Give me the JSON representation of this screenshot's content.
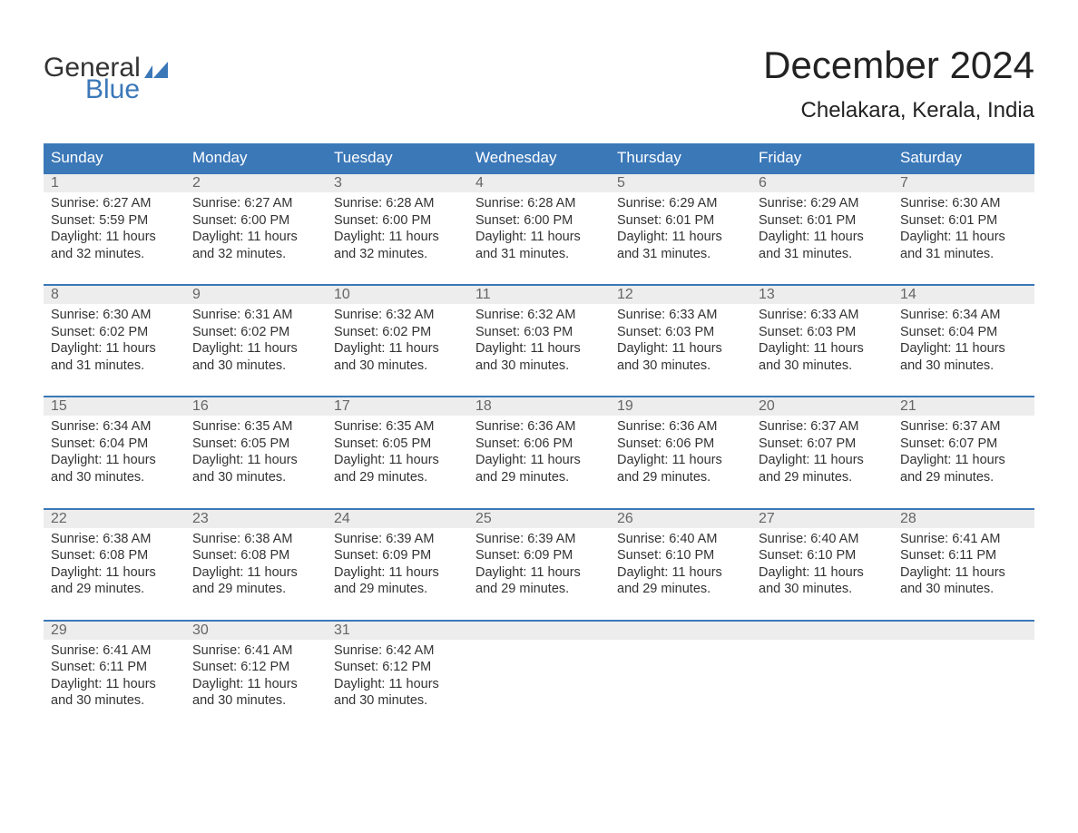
{
  "logo": {
    "word1": "General",
    "word2": "Blue",
    "mark_color": "#3b78b8"
  },
  "title": "December 2024",
  "location": "Chelakara, Kerala, India",
  "colors": {
    "header_bg": "#3b78b8",
    "header_text": "#ffffff",
    "daynum_bg": "#ededed",
    "daynum_text": "#666666",
    "body_text": "#333333",
    "week_border": "#3b78b8",
    "page_bg": "#ffffff"
  },
  "typography": {
    "title_fontsize": 42,
    "location_fontsize": 24,
    "weekday_fontsize": 17,
    "daynum_fontsize": 16,
    "body_fontsize": 14.5,
    "font_family": "Arial"
  },
  "layout": {
    "columns": 7,
    "rows": 5,
    "start_weekday": "Sunday"
  },
  "weekdays": [
    "Sunday",
    "Monday",
    "Tuesday",
    "Wednesday",
    "Thursday",
    "Friday",
    "Saturday"
  ],
  "weeks": [
    [
      {
        "day": "1",
        "sunrise": "Sunrise: 6:27 AM",
        "sunset": "Sunset: 5:59 PM",
        "daylight1": "Daylight: 11 hours",
        "daylight2": "and 32 minutes."
      },
      {
        "day": "2",
        "sunrise": "Sunrise: 6:27 AM",
        "sunset": "Sunset: 6:00 PM",
        "daylight1": "Daylight: 11 hours",
        "daylight2": "and 32 minutes."
      },
      {
        "day": "3",
        "sunrise": "Sunrise: 6:28 AM",
        "sunset": "Sunset: 6:00 PM",
        "daylight1": "Daylight: 11 hours",
        "daylight2": "and 32 minutes."
      },
      {
        "day": "4",
        "sunrise": "Sunrise: 6:28 AM",
        "sunset": "Sunset: 6:00 PM",
        "daylight1": "Daylight: 11 hours",
        "daylight2": "and 31 minutes."
      },
      {
        "day": "5",
        "sunrise": "Sunrise: 6:29 AM",
        "sunset": "Sunset: 6:01 PM",
        "daylight1": "Daylight: 11 hours",
        "daylight2": "and 31 minutes."
      },
      {
        "day": "6",
        "sunrise": "Sunrise: 6:29 AM",
        "sunset": "Sunset: 6:01 PM",
        "daylight1": "Daylight: 11 hours",
        "daylight2": "and 31 minutes."
      },
      {
        "day": "7",
        "sunrise": "Sunrise: 6:30 AM",
        "sunset": "Sunset: 6:01 PM",
        "daylight1": "Daylight: 11 hours",
        "daylight2": "and 31 minutes."
      }
    ],
    [
      {
        "day": "8",
        "sunrise": "Sunrise: 6:30 AM",
        "sunset": "Sunset: 6:02 PM",
        "daylight1": "Daylight: 11 hours",
        "daylight2": "and 31 minutes."
      },
      {
        "day": "9",
        "sunrise": "Sunrise: 6:31 AM",
        "sunset": "Sunset: 6:02 PM",
        "daylight1": "Daylight: 11 hours",
        "daylight2": "and 30 minutes."
      },
      {
        "day": "10",
        "sunrise": "Sunrise: 6:32 AM",
        "sunset": "Sunset: 6:02 PM",
        "daylight1": "Daylight: 11 hours",
        "daylight2": "and 30 minutes."
      },
      {
        "day": "11",
        "sunrise": "Sunrise: 6:32 AM",
        "sunset": "Sunset: 6:03 PM",
        "daylight1": "Daylight: 11 hours",
        "daylight2": "and 30 minutes."
      },
      {
        "day": "12",
        "sunrise": "Sunrise: 6:33 AM",
        "sunset": "Sunset: 6:03 PM",
        "daylight1": "Daylight: 11 hours",
        "daylight2": "and 30 minutes."
      },
      {
        "day": "13",
        "sunrise": "Sunrise: 6:33 AM",
        "sunset": "Sunset: 6:03 PM",
        "daylight1": "Daylight: 11 hours",
        "daylight2": "and 30 minutes."
      },
      {
        "day": "14",
        "sunrise": "Sunrise: 6:34 AM",
        "sunset": "Sunset: 6:04 PM",
        "daylight1": "Daylight: 11 hours",
        "daylight2": "and 30 minutes."
      }
    ],
    [
      {
        "day": "15",
        "sunrise": "Sunrise: 6:34 AM",
        "sunset": "Sunset: 6:04 PM",
        "daylight1": "Daylight: 11 hours",
        "daylight2": "and 30 minutes."
      },
      {
        "day": "16",
        "sunrise": "Sunrise: 6:35 AM",
        "sunset": "Sunset: 6:05 PM",
        "daylight1": "Daylight: 11 hours",
        "daylight2": "and 30 minutes."
      },
      {
        "day": "17",
        "sunrise": "Sunrise: 6:35 AM",
        "sunset": "Sunset: 6:05 PM",
        "daylight1": "Daylight: 11 hours",
        "daylight2": "and 29 minutes."
      },
      {
        "day": "18",
        "sunrise": "Sunrise: 6:36 AM",
        "sunset": "Sunset: 6:06 PM",
        "daylight1": "Daylight: 11 hours",
        "daylight2": "and 29 minutes."
      },
      {
        "day": "19",
        "sunrise": "Sunrise: 6:36 AM",
        "sunset": "Sunset: 6:06 PM",
        "daylight1": "Daylight: 11 hours",
        "daylight2": "and 29 minutes."
      },
      {
        "day": "20",
        "sunrise": "Sunrise: 6:37 AM",
        "sunset": "Sunset: 6:07 PM",
        "daylight1": "Daylight: 11 hours",
        "daylight2": "and 29 minutes."
      },
      {
        "day": "21",
        "sunrise": "Sunrise: 6:37 AM",
        "sunset": "Sunset: 6:07 PM",
        "daylight1": "Daylight: 11 hours",
        "daylight2": "and 29 minutes."
      }
    ],
    [
      {
        "day": "22",
        "sunrise": "Sunrise: 6:38 AM",
        "sunset": "Sunset: 6:08 PM",
        "daylight1": "Daylight: 11 hours",
        "daylight2": "and 29 minutes."
      },
      {
        "day": "23",
        "sunrise": "Sunrise: 6:38 AM",
        "sunset": "Sunset: 6:08 PM",
        "daylight1": "Daylight: 11 hours",
        "daylight2": "and 29 minutes."
      },
      {
        "day": "24",
        "sunrise": "Sunrise: 6:39 AM",
        "sunset": "Sunset: 6:09 PM",
        "daylight1": "Daylight: 11 hours",
        "daylight2": "and 29 minutes."
      },
      {
        "day": "25",
        "sunrise": "Sunrise: 6:39 AM",
        "sunset": "Sunset: 6:09 PM",
        "daylight1": "Daylight: 11 hours",
        "daylight2": "and 29 minutes."
      },
      {
        "day": "26",
        "sunrise": "Sunrise: 6:40 AM",
        "sunset": "Sunset: 6:10 PM",
        "daylight1": "Daylight: 11 hours",
        "daylight2": "and 29 minutes."
      },
      {
        "day": "27",
        "sunrise": "Sunrise: 6:40 AM",
        "sunset": "Sunset: 6:10 PM",
        "daylight1": "Daylight: 11 hours",
        "daylight2": "and 30 minutes."
      },
      {
        "day": "28",
        "sunrise": "Sunrise: 6:41 AM",
        "sunset": "Sunset: 6:11 PM",
        "daylight1": "Daylight: 11 hours",
        "daylight2": "and 30 minutes."
      }
    ],
    [
      {
        "day": "29",
        "sunrise": "Sunrise: 6:41 AM",
        "sunset": "Sunset: 6:11 PM",
        "daylight1": "Daylight: 11 hours",
        "daylight2": "and 30 minutes."
      },
      {
        "day": "30",
        "sunrise": "Sunrise: 6:41 AM",
        "sunset": "Sunset: 6:12 PM",
        "daylight1": "Daylight: 11 hours",
        "daylight2": "and 30 minutes."
      },
      {
        "day": "31",
        "sunrise": "Sunrise: 6:42 AM",
        "sunset": "Sunset: 6:12 PM",
        "daylight1": "Daylight: 11 hours",
        "daylight2": "and 30 minutes."
      },
      {
        "empty": true
      },
      {
        "empty": true
      },
      {
        "empty": true
      },
      {
        "empty": true
      }
    ]
  ]
}
